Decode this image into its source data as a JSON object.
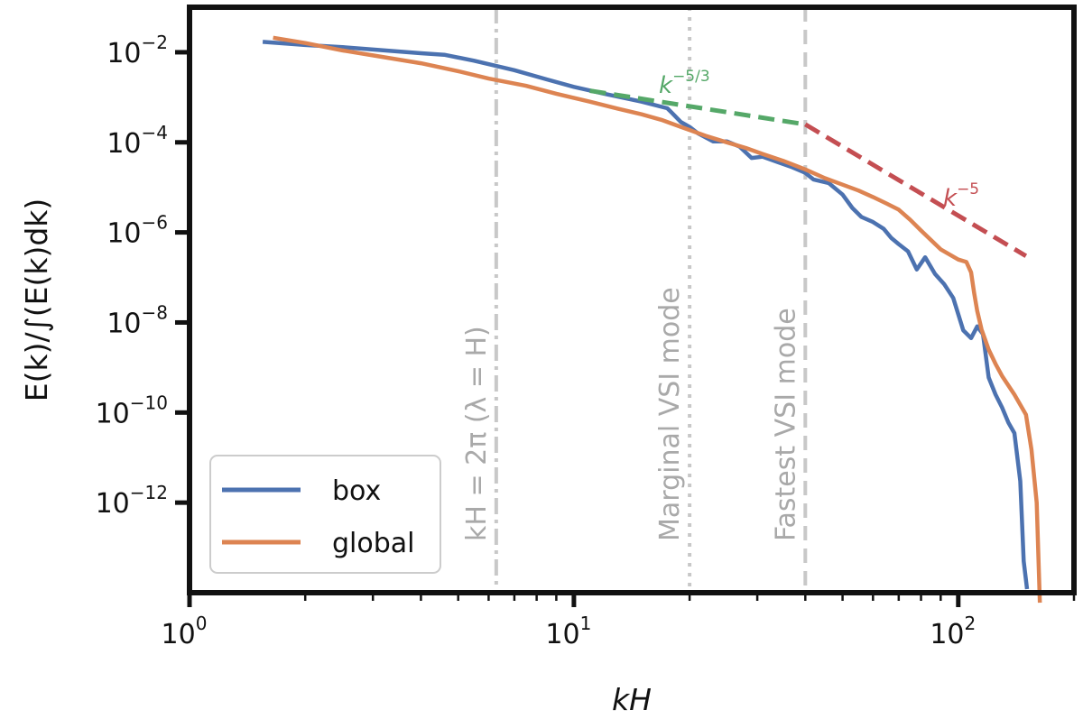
{
  "chart_data": {
    "type": "line",
    "xscale": "log",
    "yscale": "log",
    "xlim": [
      1,
      200
    ],
    "ylim": [
      1e-14,
      0.1
    ],
    "xlabel": "kH",
    "ylabel": "E(k)/∫(E(k)dk)",
    "grid": false,
    "legend_position": "lower-left",
    "x_ticks": [
      {
        "value": 1,
        "base": "10",
        "exp": "0"
      },
      {
        "value": 10,
        "base": "10",
        "exp": "1"
      },
      {
        "value": 100,
        "base": "10",
        "exp": "2"
      }
    ],
    "y_ticks": [
      {
        "value": 0.01,
        "base": "10",
        "exp": "−2"
      },
      {
        "value": 0.0001,
        "base": "10",
        "exp": "−4"
      },
      {
        "value": 1e-06,
        "base": "10",
        "exp": "−6"
      },
      {
        "value": 1e-08,
        "base": "10",
        "exp": "−8"
      },
      {
        "value": 1e-10,
        "base": "10",
        "exp": "−10"
      },
      {
        "value": 1e-12,
        "base": "10",
        "exp": "−12"
      }
    ],
    "series": [
      {
        "name": "box",
        "color": "#4c72b0",
        "x": [
          1.55,
          2.0,
          2.5,
          3.0,
          4.0,
          4.6,
          5.5,
          7.0,
          8.5,
          10,
          12,
          15,
          17.5,
          18,
          19,
          20,
          21,
          23,
          25,
          27,
          29,
          31,
          34,
          37,
          40,
          42,
          46,
          50,
          53,
          56,
          60,
          64,
          67,
          70,
          74,
          78,
          82,
          87,
          92,
          97,
          103,
          108,
          112,
          116,
          120,
          125,
          130,
          135,
          140,
          145,
          148,
          151
        ],
        "y": [
          0.017,
          0.0145,
          0.013,
          0.0115,
          0.0095,
          0.0088,
          0.0065,
          0.004,
          0.0025,
          0.0017,
          0.0012,
          0.0008,
          0.00057,
          0.00045,
          0.00028,
          0.00022,
          0.00016,
          0.000105,
          0.000105,
          8e-05,
          4.5e-05,
          4.8e-05,
          3.6e-05,
          2.8e-05,
          2.1e-05,
          1.5e-05,
          1.25e-05,
          6.9e-06,
          3.5e-06,
          2.2e-06,
          1.7e-06,
          1.2e-06,
          7.5e-07,
          5.5e-07,
          3.8e-07,
          1.5e-07,
          2.8e-07,
          1.2e-07,
          7e-08,
          3.5e-08,
          6.7e-09,
          4.5e-09,
          8.2e-09,
          5.5e-09,
          6e-10,
          2.5e-10,
          1.3e-10,
          6e-11,
          3.5e-11,
          3e-12,
          5e-14,
          1.2e-14
        ]
      },
      {
        "name": "global",
        "color": "#dd8452",
        "x": [
          1.65,
          2.0,
          2.5,
          3.0,
          4.0,
          5.0,
          6.0,
          7.5,
          9.0,
          11,
          13,
          15,
          17,
          19,
          22,
          25,
          28,
          31,
          35,
          40,
          45,
          50,
          55,
          60,
          65,
          70,
          75,
          80,
          90,
          100,
          105,
          108,
          110,
          112,
          115,
          120,
          125,
          130,
          140,
          150,
          155,
          160,
          163
        ],
        "y": [
          0.021,
          0.016,
          0.011,
          0.0085,
          0.0057,
          0.0038,
          0.0026,
          0.0018,
          0.0012,
          0.0008,
          0.00056,
          0.00042,
          0.00031,
          0.00022,
          0.00014,
          0.0001,
          7.5e-05,
          5.5e-05,
          3.9e-05,
          2.5e-05,
          1.6e-05,
          1.15e-05,
          8.5e-06,
          6.1e-06,
          4.4e-06,
          3.2e-06,
          1.9e-06,
          1.1e-06,
          4.2e-07,
          2.5e-07,
          2.2e-07,
          1.3e-07,
          4.5e-08,
          1.8e-08,
          7e-09,
          2.5e-09,
          1.2e-09,
          6.5e-10,
          2.5e-10,
          9e-11,
          1.5e-11,
          1e-12,
          6e-15
        ]
      }
    ],
    "reference_lines": [
      {
        "label_prefix": "k",
        "label_exp": "−5/3",
        "color": "#55a868",
        "x": [
          11,
          40
        ],
        "y": [
          0.0014,
          0.00025
        ]
      },
      {
        "label_prefix": "k",
        "label_exp": "−5",
        "color": "#c44e52",
        "x": [
          40,
          150
        ],
        "y": [
          0.00025,
          3e-07
        ]
      }
    ],
    "vertical_lines": [
      {
        "x": 6.28,
        "style": "dashdot",
        "label": "kH = 2π (λ = H)"
      },
      {
        "x": 20,
        "style": "dotted",
        "label": "Marginal VSI mode"
      },
      {
        "x": 40,
        "style": "dashed",
        "label": "Fastest VSI mode"
      }
    ]
  }
}
